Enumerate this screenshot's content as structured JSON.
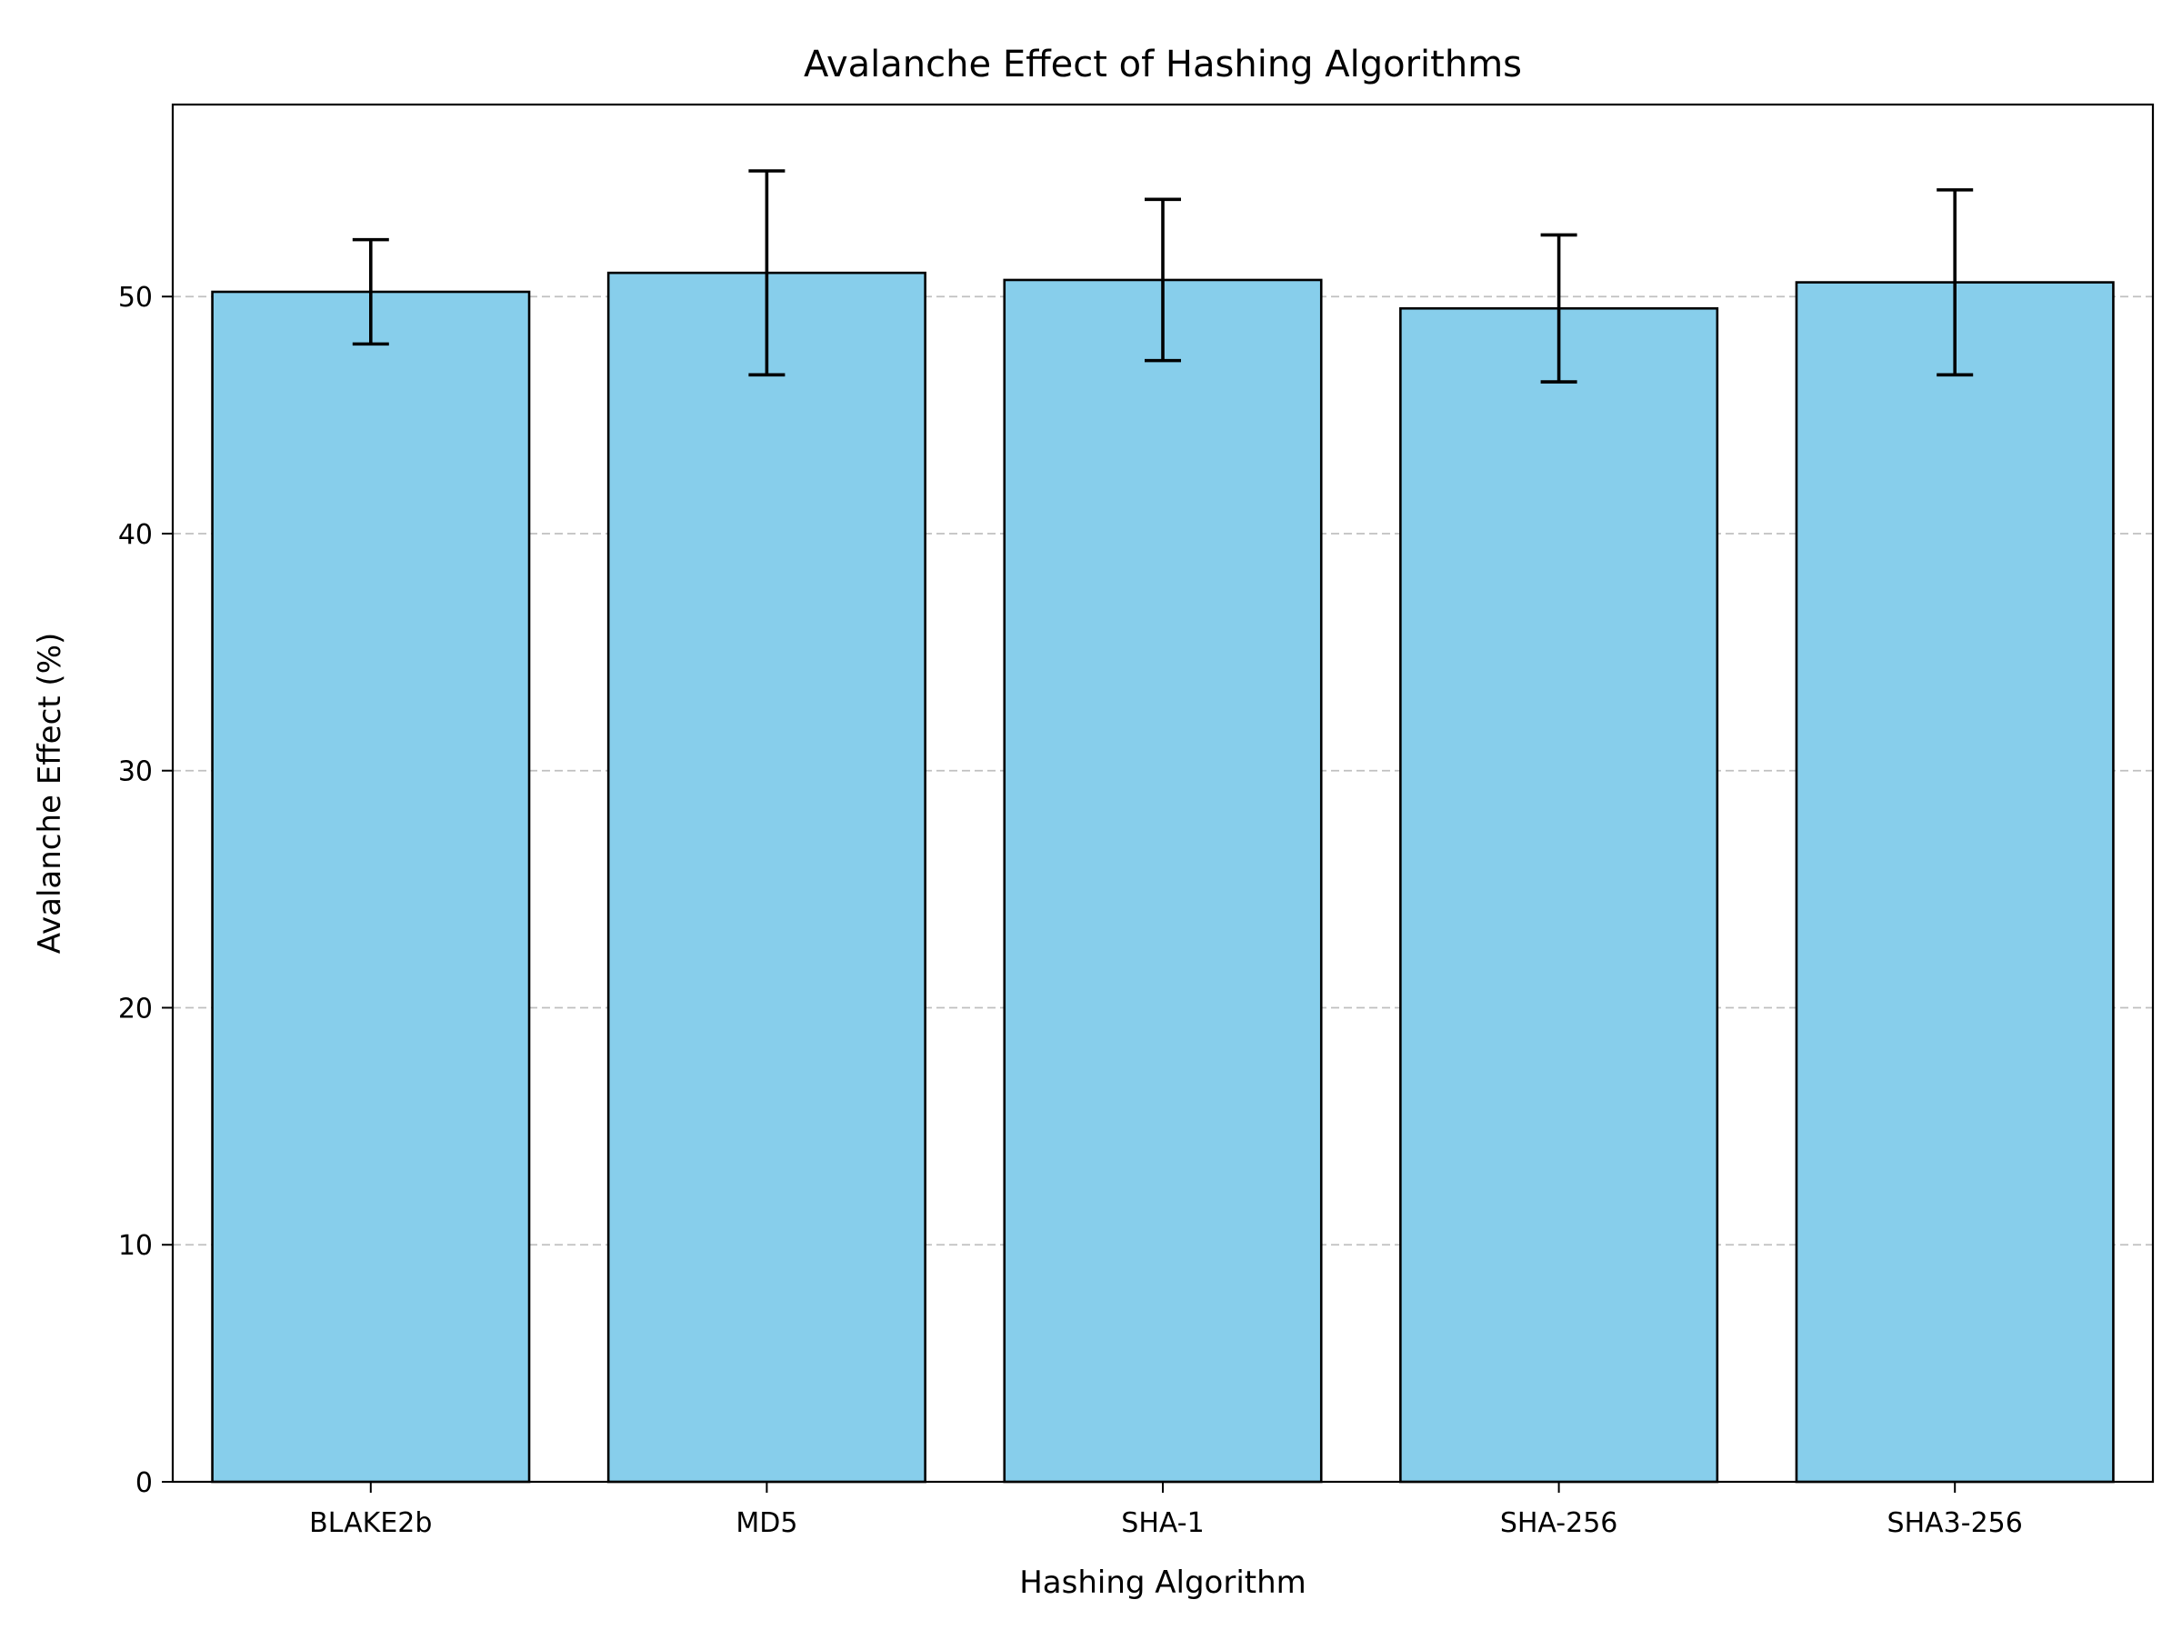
{
  "chart_data": {
    "type": "bar",
    "title": "Avalanche Effect of Hashing Algorithms",
    "xlabel": "Hashing Algorithm",
    "ylabel": "Avalanche Effect (%)",
    "categories": [
      "BLAKE2b",
      "MD5",
      "SHA-1",
      "SHA-256",
      "SHA3-256"
    ],
    "values": [
      50.2,
      51.0,
      50.7,
      49.5,
      50.6
    ],
    "errors": [
      2.2,
      4.3,
      3.4,
      3.1,
      3.9
    ],
    "ylim": [
      0,
      58.1
    ],
    "yticks": [
      0,
      10,
      20,
      30,
      40,
      50
    ],
    "grid": {
      "axis": "y",
      "style": "dashed",
      "color": "#c0c0c0"
    },
    "bar_color": "#87ceeb",
    "edge_color": "#000000"
  }
}
